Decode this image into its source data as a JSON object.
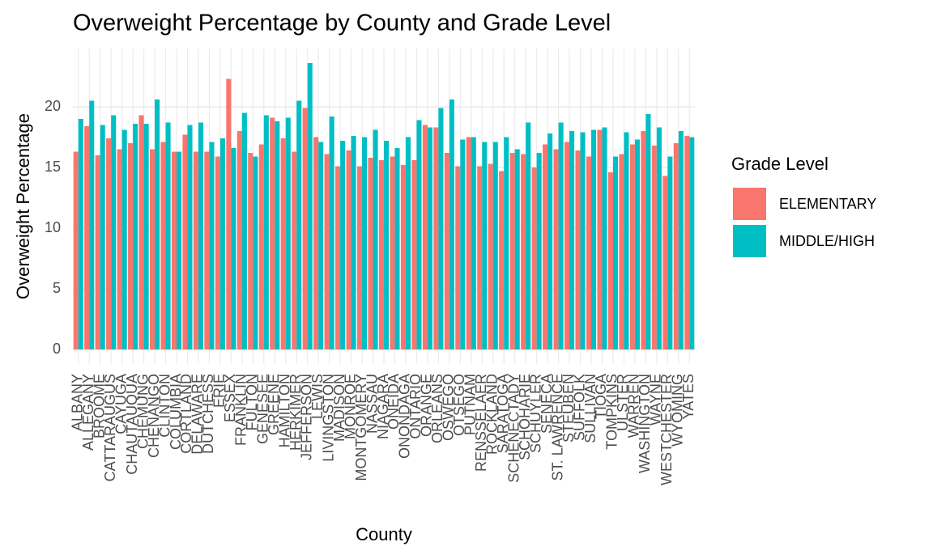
{
  "chart_data": {
    "type": "bar",
    "title": "Overweight Percentage by County and Grade Level",
    "x_label": "County",
    "y_label": "Overweight Percentage",
    "legend_title": "Grade Level",
    "legend_position": "right",
    "grid": true,
    "categories": [
      "ALBANY",
      "ALLEGANY",
      "BROOME",
      "CATTARAUGUS",
      "CAYUGA",
      "CHAUTAUQUA",
      "CHEMUNG",
      "CHENANGO",
      "CLINTON",
      "COLUMBIA",
      "CORTLAND",
      "DELAWARE",
      "DUTCHESS",
      "ERIE",
      "ESSEX",
      "FRANKLIN",
      "FULTON",
      "GENESEE",
      "GREENE",
      "HAMILTON",
      "HERKIMER",
      "JEFFERSON",
      "LEWIS",
      "LIVINGSTON",
      "MADISON",
      "MONROE",
      "MONTGOMERY",
      "NASSAU",
      "NIAGARA",
      "ONEIDA",
      "ONONDAGA",
      "ONTARIO",
      "ORANGE",
      "ORLEANS",
      "OSWEGO",
      "OTSEGO",
      "PUTNAM",
      "RENSSELAER",
      "ROCKLAND",
      "SARATOGA",
      "SCHENECTADY",
      "SCHOHARIE",
      "SCHUYLER",
      "SENECA",
      "ST. LAWRENCE",
      "STEUBEN",
      "SUFFOLK",
      "SULLIVAN",
      "TIOGA",
      "TOMPKINS",
      "ULSTER",
      "WARREN",
      "WASHINGTON",
      "WAYNE",
      "WESTCHESTER",
      "WYOMING",
      "YATES"
    ],
    "series": [
      {
        "name": "ELEMENTARY",
        "color": "#f8766d",
        "values": [
          16.3,
          18.4,
          16.0,
          17.4,
          16.5,
          17.0,
          19.3,
          16.5,
          17.1,
          16.3,
          17.7,
          16.3,
          16.3,
          15.9,
          22.3,
          18.0,
          16.2,
          16.9,
          19.1,
          17.4,
          16.3,
          19.9,
          17.5,
          16.1,
          15.1,
          16.4,
          15.1,
          15.8,
          15.6,
          15.9,
          15.2,
          15.6,
          18.5,
          18.3,
          16.2,
          15.1,
          17.5,
          15.1,
          15.3,
          14.7,
          16.2,
          16.1,
          15.0,
          16.9,
          16.5,
          17.1,
          16.4,
          15.9,
          18.1,
          14.6,
          16.1,
          16.9,
          18.0,
          16.8,
          14.3,
          17.0,
          17.6
        ]
      },
      {
        "name": "MIDDLE/HIGH",
        "color": "#00bfc4",
        "values": [
          19.0,
          20.5,
          18.5,
          19.3,
          18.1,
          18.6,
          18.6,
          20.6,
          18.7,
          16.3,
          18.5,
          18.7,
          17.1,
          17.4,
          16.6,
          19.5,
          15.9,
          19.3,
          18.8,
          19.1,
          20.5,
          23.6,
          17.1,
          19.2,
          17.2,
          17.6,
          17.5,
          18.1,
          17.2,
          16.6,
          17.5,
          18.9,
          18.3,
          19.9,
          20.6,
          17.3,
          17.5,
          17.1,
          17.1,
          17.5,
          16.5,
          18.7,
          16.2,
          17.8,
          18.7,
          18.0,
          17.9,
          18.1,
          18.3,
          15.9,
          17.9,
          17.3,
          19.4,
          18.3,
          15.9,
          18.0,
          17.5
        ]
      }
    ],
    "ylim": [
      -1.2,
      24.8
    ],
    "yticks": [
      0,
      5,
      10,
      15,
      20
    ]
  }
}
